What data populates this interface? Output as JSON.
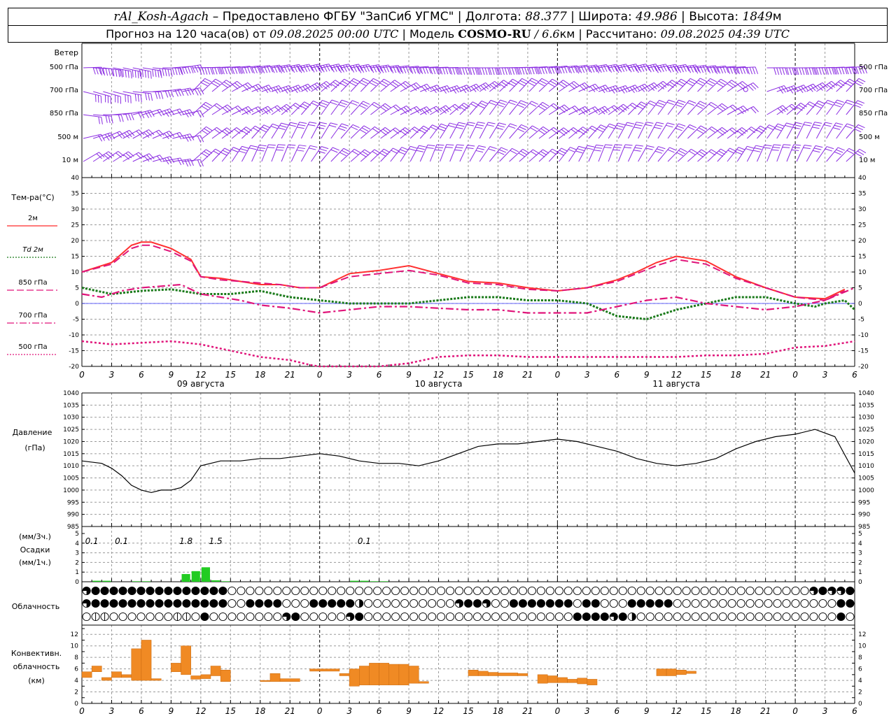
{
  "header": {
    "station": "rAl_Kosh-Agach",
    "sep1": " – Предоставлено ФГБУ \"ЗапСиб УГМС\" | Долгота: ",
    "lon": "88.377",
    "sep2": " | Широта: ",
    "lat": "49.986",
    "sep3": " | Высота: ",
    "alt": "1849",
    "alt_unit": "м",
    "fc_prefix": "Прогноз на 120 часа(ов) от ",
    "fc_start": "09.08.2025 00:00 UTC",
    "model_prefix": " | Модель ",
    "model": "COSMO-RU",
    "model_res": " / 6.6",
    "model_res_unit": "км",
    "calc_prefix": " | Рассчитано: ",
    "calc_time": "09.08.2025 04:39 UTC"
  },
  "wind": {
    "title": "Ветер",
    "levels": [
      "500 гПа",
      "700 гПа",
      "850 гПа",
      "500 м",
      "10  м"
    ],
    "barb_color": "#8a2be2"
  },
  "temp": {
    "title": "Тем-ра(°С)",
    "legend": [
      {
        "label": "2м",
        "color": "#ff2a2a",
        "style": "solid"
      },
      {
        "label": "Td  2м",
        "color": "#1a7a1a",
        "style": "dotted"
      },
      {
        "label": "850 гПа",
        "color": "#e0147a",
        "style": "dashed"
      },
      {
        "label": "700 гПа",
        "color": "#e0147a",
        "style": "dashdot"
      },
      {
        "label": "500 гПа",
        "color": "#e0147a",
        "style": "dotted"
      }
    ],
    "ylim": [
      -20,
      40
    ],
    "yticks": [
      "40",
      "35",
      "30",
      "25",
      "20",
      "15",
      "10",
      "5",
      "0",
      "-5",
      "-10",
      "-15",
      "-20"
    ]
  },
  "pressure": {
    "title1": "Давление",
    "title2": "(гПа)",
    "ylim": [
      985,
      1040
    ],
    "yticks": [
      "1040",
      "1035",
      "1030",
      "1025",
      "1020",
      "1015",
      "1010",
      "1005",
      "1000",
      "995",
      "990",
      "985"
    ]
  },
  "precip": {
    "title1": "(мм/3ч.)",
    "title2": "Осадки",
    "title3": "(мм/1ч.)",
    "yticks": [
      "5",
      "4",
      "3",
      "2",
      "1",
      "0"
    ],
    "labels": [
      {
        "hour": 1,
        "text": "0.1"
      },
      {
        "hour": 4,
        "text": "0.1"
      },
      {
        "hour": 10.5,
        "text": "1.8"
      },
      {
        "hour": 13.5,
        "text": "1.5"
      },
      {
        "hour": 28.5,
        "text": "0.1"
      }
    ]
  },
  "cloud": {
    "title": "Облачность"
  },
  "conv": {
    "title1": "Конвективн.",
    "title2": "облачность",
    "title3": "(км)",
    "yticks": [
      "12",
      "10",
      "8",
      "6",
      "4",
      "2",
      "0"
    ]
  },
  "axis": {
    "hour_labels": [
      "0",
      "3",
      "6",
      "9",
      "12",
      "15",
      "18",
      "21",
      "0",
      "3",
      "6",
      "9",
      "12",
      "15",
      "18",
      "21",
      "0",
      "3",
      "6",
      "9",
      "12",
      "15",
      "18",
      "21",
      "0",
      "3",
      "6"
    ],
    "dates": [
      "09 августа",
      "10 августа",
      "11 августа"
    ]
  },
  "chart_data": [
    {
      "type": "line",
      "title": "Тем-ра(°С)",
      "x_unit": "hours since 09.08.2025 00 UTC",
      "ylim": [
        -20,
        40
      ],
      "series": [
        {
          "name": "2м",
          "color": "#ff3030",
          "x": [
            0,
            3,
            5,
            6,
            7,
            9,
            11,
            12,
            14,
            16,
            18,
            20,
            22,
            24,
            27,
            30,
            33,
            36,
            39,
            42,
            45,
            48,
            51,
            54,
            56,
            58,
            60,
            63,
            66,
            69,
            72,
            75,
            77
          ],
          "y": [
            10,
            13,
            18.5,
            19.5,
            19.5,
            17.5,
            14,
            8.5,
            8,
            7,
            6,
            6,
            5,
            5,
            9.5,
            10.5,
            12,
            9.5,
            7,
            6.5,
            5,
            4,
            5,
            7.5,
            10,
            13,
            15,
            13.5,
            8.5,
            5,
            2,
            1.5,
            4.5
          ]
        },
        {
          "name": "Td  2м",
          "color": "#1a7a1a",
          "x": [
            0,
            3,
            6,
            9,
            12,
            15,
            18,
            21,
            24,
            27,
            30,
            33,
            36,
            39,
            42,
            45,
            48,
            51,
            54,
            57,
            59,
            60,
            63,
            66,
            69,
            72,
            74,
            75,
            77,
            78
          ],
          "y": [
            5,
            3,
            4,
            4.5,
            3,
            3,
            4,
            2,
            1,
            0,
            0,
            0,
            1,
            2,
            2,
            1,
            1,
            0,
            -4,
            -5,
            -3,
            -2,
            0,
            2,
            2,
            0,
            -1,
            0,
            1,
            -2
          ]
        },
        {
          "name": "850 гПа",
          "color": "#e0147a",
          "x": [
            0,
            3,
            5,
            6,
            7,
            9,
            11,
            12,
            14,
            16,
            18,
            20,
            22,
            24,
            27,
            30,
            33,
            36,
            39,
            42,
            45,
            48,
            51,
            54,
            56,
            58,
            60,
            63,
            66,
            69,
            72,
            75,
            77
          ],
          "y": [
            10,
            12.5,
            17.5,
            18.5,
            18.5,
            16.5,
            13.5,
            8.5,
            7.5,
            7,
            6.5,
            6,
            5,
            5,
            8.5,
            9.5,
            10.5,
            9,
            6.5,
            6,
            4.5,
            4,
            5,
            7,
            9.5,
            12,
            14,
            12.5,
            8,
            5,
            2,
            1,
            4
          ]
        },
        {
          "name": "700 гПа",
          "color": "#e0147a",
          "x": [
            0,
            2,
            4,
            6,
            8,
            10,
            12,
            14,
            16,
            18,
            21,
            24,
            27,
            30,
            33,
            36,
            39,
            42,
            45,
            48,
            51,
            54,
            57,
            60,
            63,
            66,
            69,
            72,
            75,
            78
          ],
          "y": [
            3,
            2,
            4,
            5,
            5.5,
            6,
            3,
            2,
            1,
            -0.5,
            -1.5,
            -3,
            -2,
            -1,
            -1,
            -1.5,
            -2,
            -2,
            -3,
            -3,
            -3,
            -1,
            1,
            2,
            0,
            -1,
            -2,
            -1,
            1,
            5
          ]
        },
        {
          "name": "500 гПа",
          "color": "#e0147a",
          "x": [
            0,
            3,
            6,
            9,
            12,
            15,
            18,
            21,
            23,
            24,
            30,
            33,
            36,
            39,
            42,
            45,
            48,
            51,
            54,
            57,
            60,
            63,
            66,
            69,
            72,
            75,
            78
          ],
          "y": [
            -12,
            -13,
            -12.5,
            -12,
            -13,
            -15,
            -17,
            -18,
            -19.5,
            -20,
            -20,
            -19,
            -17,
            -16.5,
            -16.5,
            -17,
            -17,
            -17,
            -17,
            -17,
            -17,
            -16.5,
            -16.5,
            -16,
            -14,
            -13.5,
            -12
          ]
        }
      ]
    },
    {
      "type": "line",
      "title": "Давление",
      "ylabel": "(гПа)",
      "ylim": [
        985,
        1040
      ],
      "series": [
        {
          "name": "Давление",
          "color": "#000000",
          "x": [
            0,
            2,
            3,
            4,
            5,
            6,
            7,
            8,
            9,
            10,
            11,
            12,
            14,
            16,
            18,
            20,
            22,
            24,
            26,
            28,
            30,
            32,
            34,
            36,
            38,
            40,
            42,
            44,
            46,
            48,
            50,
            52,
            54,
            56,
            58,
            60,
            62,
            64,
            66,
            68,
            70,
            72,
            74,
            76,
            78
          ],
          "y": [
            1012,
            1011,
            1009,
            1006,
            1002,
            1000,
            999,
            1000,
            1000,
            1001,
            1004,
            1010,
            1012,
            1012,
            1013,
            1013,
            1014,
            1015,
            1014,
            1012,
            1011,
            1011,
            1010,
            1012,
            1015,
            1018,
            1019,
            1019,
            1020,
            1021,
            1020,
            1018,
            1016,
            1013,
            1011,
            1010,
            1011,
            1013,
            1017,
            1020,
            1022,
            1023,
            1025,
            1022,
            1007
          ]
        }
      ]
    },
    {
      "type": "bar",
      "title": "Осадки",
      "ylabel": "(мм/1ч.)",
      "ylim": [
        0,
        5
      ],
      "x": [
        1,
        2,
        5,
        6,
        10,
        11,
        12,
        13,
        14,
        27,
        28,
        29,
        30
      ],
      "values": [
        0.1,
        0.1,
        0.05,
        0.05,
        0.8,
        1.1,
        1.5,
        0.15,
        0.05,
        0.1,
        0.1,
        0.05,
        0.05
      ],
      "color": "#22cc22"
    },
    {
      "type": "bar",
      "title": "Конвективн. облачность",
      "ylabel": "(км)",
      "ylim": [
        0,
        13
      ],
      "bars": [
        {
          "x0": 0,
          "x1": 1,
          "bottom": 4.5,
          "top": 5.5
        },
        {
          "x0": 1,
          "x1": 2,
          "bottom": 5.5,
          "top": 6.5
        },
        {
          "x0": 2,
          "x1": 3,
          "bottom": 4,
          "top": 4.5
        },
        {
          "x0": 3,
          "x1": 4,
          "bottom": 4.5,
          "top": 5.5
        },
        {
          "x0": 4,
          "x1": 5,
          "bottom": 4.5,
          "top": 5
        },
        {
          "x0": 5,
          "x1": 6,
          "bottom": 4,
          "top": 9.5
        },
        {
          "x0": 6,
          "x1": 7,
          "bottom": 4,
          "top": 11
        },
        {
          "x0": 7,
          "x1": 8,
          "bottom": 4,
          "top": 4.3
        },
        {
          "x0": 9,
          "x1": 10,
          "bottom": 5.5,
          "top": 7
        },
        {
          "x0": 10,
          "x1": 11,
          "bottom": 5,
          "top": 10
        },
        {
          "x0": 11,
          "x1": 12,
          "bottom": 4.2,
          "top": 4.8
        },
        {
          "x0": 12,
          "x1": 13,
          "bottom": 4.3,
          "top": 5
        },
        {
          "x0": 13,
          "x1": 14,
          "bottom": 4.8,
          "top": 6.5
        },
        {
          "x0": 14,
          "x1": 15,
          "bottom": 3.8,
          "top": 5.8
        },
        {
          "x0": 18,
          "x1": 19,
          "bottom": 3.8,
          "top": 4
        },
        {
          "x0": 19,
          "x1": 20,
          "bottom": 3.8,
          "top": 5.2
        },
        {
          "x0": 20,
          "x1": 22,
          "bottom": 3.8,
          "top": 4.3
        },
        {
          "x0": 23,
          "x1": 24,
          "bottom": 5.6,
          "top": 6
        },
        {
          "x0": 24,
          "x1": 26,
          "bottom": 5.6,
          "top": 6
        },
        {
          "x0": 26,
          "x1": 27,
          "bottom": 4.8,
          "top": 5.2
        },
        {
          "x0": 27,
          "x1": 28,
          "bottom": 3,
          "top": 6
        },
        {
          "x0": 28,
          "x1": 29,
          "bottom": 3.2,
          "top": 6.5
        },
        {
          "x0": 29,
          "x1": 30,
          "bottom": 3.2,
          "top": 7
        },
        {
          "x0": 30,
          "x1": 31,
          "bottom": 3.2,
          "top": 7
        },
        {
          "x0": 31,
          "x1": 32,
          "bottom": 3.2,
          "top": 6.8
        },
        {
          "x0": 32,
          "x1": 33,
          "bottom": 3.2,
          "top": 6.8
        },
        {
          "x0": 33,
          "x1": 34,
          "bottom": 3.5,
          "top": 6.5
        },
        {
          "x0": 34,
          "x1": 35,
          "bottom": 3.5,
          "top": 3.8
        },
        {
          "x0": 39,
          "x1": 40,
          "bottom": 4.8,
          "top": 5.8
        },
        {
          "x0": 40,
          "x1": 41,
          "bottom": 4.8,
          "top": 5.6
        },
        {
          "x0": 41,
          "x1": 42,
          "bottom": 4.8,
          "top": 5.4
        },
        {
          "x0": 42,
          "x1": 44,
          "bottom": 4.8,
          "top": 5.3
        },
        {
          "x0": 44,
          "x1": 45,
          "bottom": 4.8,
          "top": 5.2
        },
        {
          "x0": 46,
          "x1": 47,
          "bottom": 3.5,
          "top": 5
        },
        {
          "x0": 47,
          "x1": 48,
          "bottom": 3.6,
          "top": 4.8
        },
        {
          "x0": 48,
          "x1": 49,
          "bottom": 3.6,
          "top": 4.5
        },
        {
          "x0": 49,
          "x1": 50,
          "bottom": 3.6,
          "top": 4.2
        },
        {
          "x0": 50,
          "x1": 51,
          "bottom": 3.4,
          "top": 4.4
        },
        {
          "x0": 51,
          "x1": 52,
          "bottom": 3.2,
          "top": 4.2
        },
        {
          "x0": 58,
          "x1": 59,
          "bottom": 4.8,
          "top": 6
        },
        {
          "x0": 59,
          "x1": 60,
          "bottom": 4.8,
          "top": 6
        },
        {
          "x0": 60,
          "x1": 61,
          "bottom": 5,
          "top": 5.8
        },
        {
          "x0": 61,
          "x1": 62,
          "bottom": 5.2,
          "top": 5.6
        }
      ],
      "color": "#f08a24"
    },
    {
      "type": "table",
      "title": "Облачность",
      "legend": "0 ясно, 1 четверть, 2 половина, 3 три четверти, 4 сплошная, 5 перечёркнутый (мелкие облака)",
      "rows": [
        "3444444444444444000000000000000000000000000000000000000000000000000000000000000034334",
        "3444444444444444004444000444442000000000034430044444440440004444400000000000000000044",
        "0550000000550400000000340000034000000000000000000000004444342000000000000000000000040"
      ]
    },
    {
      "type": "table",
      "title": "Ветер",
      "levels": [
        "500 гПа",
        "700 гПа",
        "850 гПа",
        "500 м",
        "10  м"
      ],
      "barbs": "wind barbs every hour at each level; speeds mostly 5–25 m/s, directions mostly W/NW"
    }
  ]
}
